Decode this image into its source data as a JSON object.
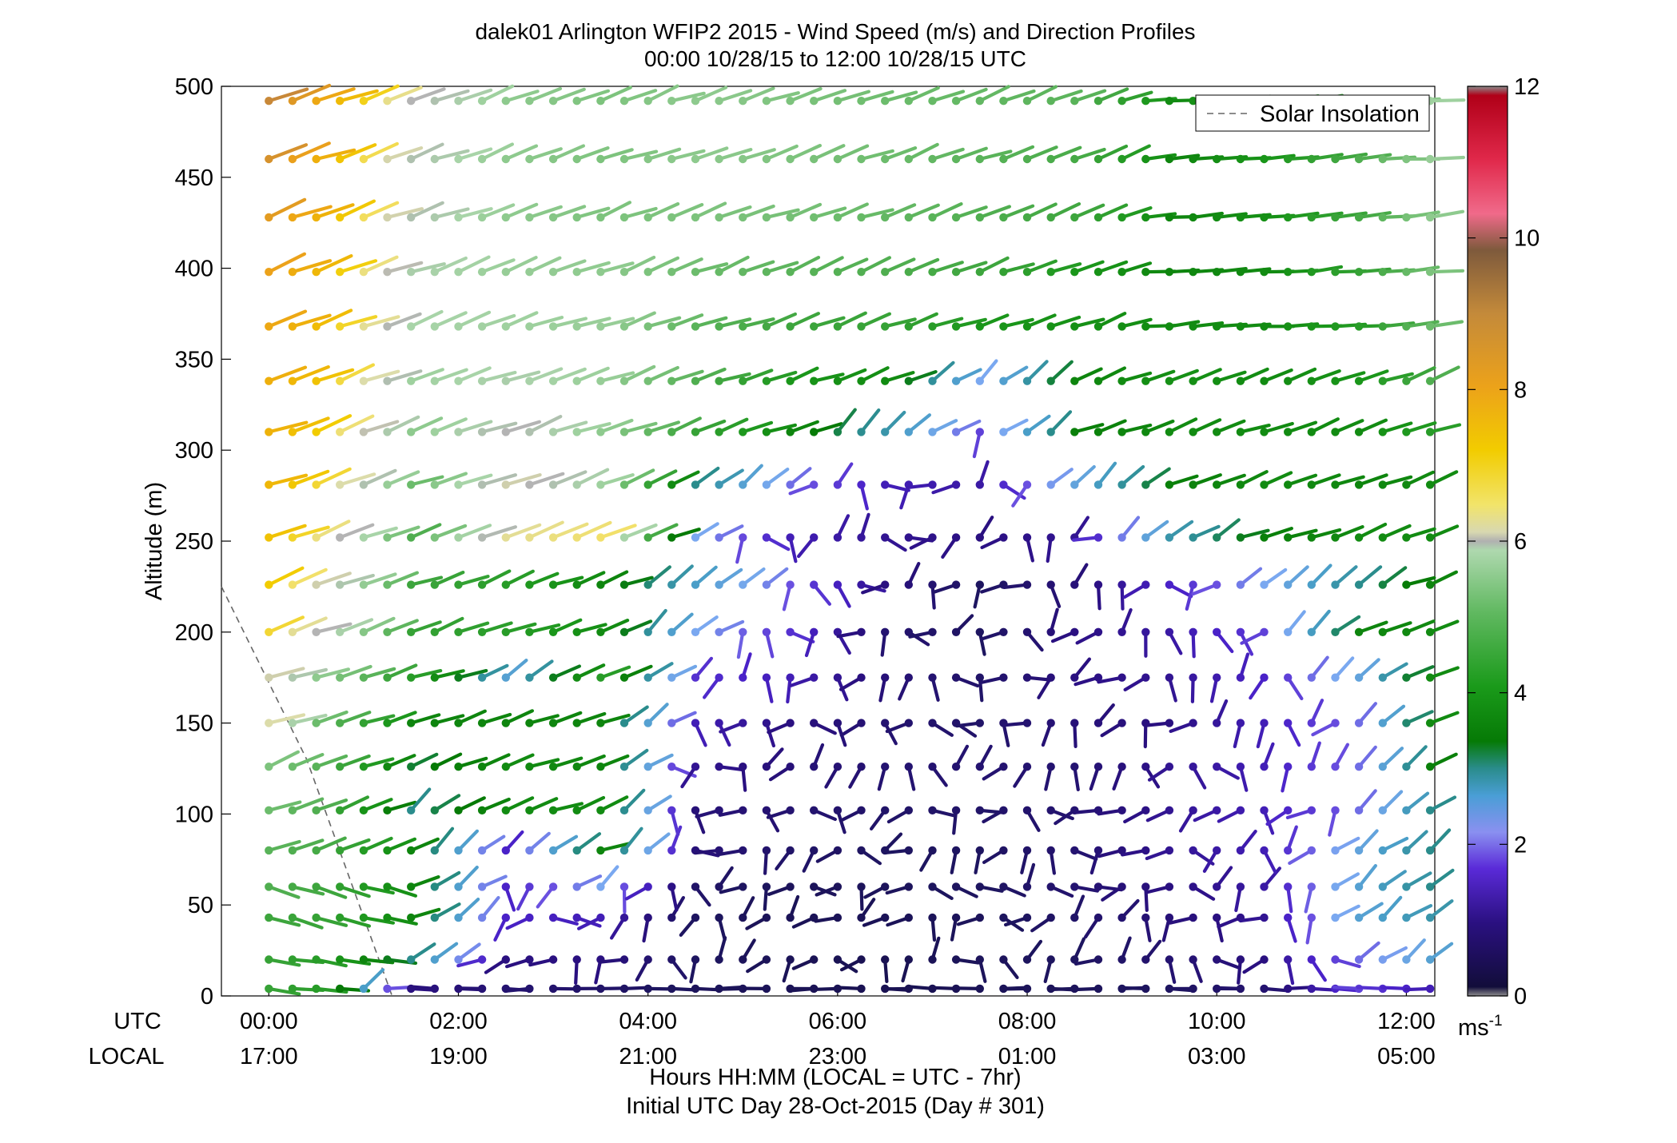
{
  "header": {
    "title_line1": "dalek01 Arlington WFIP2 2015 - Wind Speed (m/s) and Direction Profiles",
    "title_line2": "00:00 10/28/15 to 12:00 10/28/15  UTC"
  },
  "axes": {
    "ylabel": "Altitude (m)",
    "xlabel_line1": "Hours HH:MM  (LOCAL = UTC - 7hr)",
    "xlabel_line2": "Initial UTC Day 28-Oct-2015 (Day # 301)",
    "utc_row_label": "UTC",
    "local_row_label": "LOCAL",
    "utc_ticks": [
      "00:00",
      "02:00",
      "04:00",
      "06:00",
      "08:00",
      "10:00",
      "12:00"
    ],
    "local_ticks": [
      "17:00",
      "19:00",
      "21:00",
      "23:00",
      "01:00",
      "03:00",
      "05:00"
    ],
    "y_ticks": [
      "0",
      "50",
      "100",
      "150",
      "200",
      "250",
      "300",
      "350",
      "400",
      "450",
      "500"
    ]
  },
  "legend": {
    "solar_label": "Solar Insolation"
  },
  "colorbar": {
    "ticks": [
      "0",
      "2",
      "4",
      "6",
      "8",
      "10",
      "12"
    ],
    "unit_base": "ms",
    "unit_exp": "-1"
  },
  "chart_data": {
    "type": "wind barb profile (speed-colored direction sticks)",
    "title": "dalek01 Arlington WFIP2 2015 - Wind Speed (m/s) and Direction Profiles",
    "subtitle": "00:00 10/28/15 to 12:00 10/28/15  UTC",
    "xlabel": "Hours HH:MM  (LOCAL = UTC - 7hr)",
    "ylabel": "Altitude (m)",
    "x_range_hours_utc": [
      -0.5,
      12.3
    ],
    "y_range_m": [
      0,
      500
    ],
    "time_step_minutes": 15,
    "start_hour_utc": 0,
    "altitudes_m": [
      4,
      20,
      43,
      60,
      80,
      102,
      126,
      150,
      175,
      200,
      226,
      252,
      281,
      310,
      338,
      368,
      398,
      428,
      460,
      492
    ],
    "colorbar_range_ms": [
      0,
      12
    ],
    "solar_insolation_line": [
      [
        -0.5,
        225
      ],
      [
        0.4,
        130
      ],
      [
        1.3,
        0
      ]
    ],
    "speed_keyframes": {
      "hours": [
        0,
        0.5,
        1.5,
        2.5,
        3.5,
        4.5,
        5.5,
        6.5,
        7.5,
        8.5,
        9.5,
        10.5,
        11.5,
        12.25
      ],
      "profiles": [
        [
          4.2,
          4.0,
          1.2,
          1.0,
          0.9,
          0.7,
          0.6,
          0.5,
          0.6,
          0.7,
          0.8,
          1.0,
          1.8,
          1.5
        ],
        [
          4.2,
          4.0,
          3.0,
          1.2,
          1.2,
          0.8,
          0.6,
          0.5,
          0.7,
          0.8,
          1.0,
          1.2,
          2.0,
          2.5
        ],
        [
          4.3,
          4.2,
          3.5,
          1.6,
          1.5,
          0.8,
          0.6,
          0.6,
          0.7,
          0.9,
          1.1,
          1.3,
          2.5,
          2.8
        ],
        [
          4.5,
          4.3,
          3.5,
          1.6,
          2.2,
          0.9,
          0.7,
          0.7,
          0.8,
          1.0,
          1.2,
          1.4,
          2.5,
          3.0
        ],
        [
          4.6,
          4.4,
          3.5,
          1.6,
          3.5,
          1.1,
          0.9,
          0.8,
          0.8,
          1.0,
          1.3,
          1.5,
          2.4,
          3.0
        ],
        [
          4.8,
          4.5,
          3.0,
          3.6,
          3.6,
          1.1,
          1.0,
          0.9,
          0.9,
          1.0,
          1.3,
          1.5,
          2.0,
          3.0
        ],
        [
          5.0,
          4.6,
          3.2,
          3.6,
          3.5,
          1.3,
          1.1,
          1.0,
          1.0,
          1.0,
          1.3,
          1.5,
          2.0,
          3.4
        ],
        [
          6.3,
          4.8,
          3.5,
          3.5,
          3.5,
          1.5,
          1.2,
          1.0,
          0.9,
          1.1,
          1.2,
          1.5,
          2.0,
          3.6
        ],
        [
          6.2,
          5.2,
          4.0,
          2.5,
          4.0,
          1.7,
          1.5,
          1.1,
          0.9,
          1.2,
          1.3,
          1.6,
          2.4,
          3.6
        ],
        [
          6.8,
          6.0,
          4.2,
          4.0,
          3.6,
          2.2,
          1.7,
          1.0,
          0.8,
          1.2,
          1.4,
          1.8,
          3.5,
          3.6
        ],
        [
          7.0,
          6.2,
          4.3,
          4.0,
          3.5,
          2.6,
          1.9,
          1.2,
          0.8,
          1.1,
          1.6,
          2.2,
          3.0,
          3.5
        ],
        [
          7.2,
          6.5,
          4.5,
          6.4,
          6.6,
          2.2,
          1.5,
          1.3,
          1.2,
          1.3,
          2.8,
          3.4,
          3.6,
          3.6
        ],
        [
          7.4,
          6.8,
          4.8,
          6.2,
          5.4,
          3.0,
          2.0,
          1.5,
          1.4,
          2.4,
          3.4,
          3.6,
          3.5,
          3.6
        ],
        [
          7.5,
          7.0,
          5.2,
          6.0,
          5.2,
          4.2,
          3.5,
          2.8,
          1.8,
          3.4,
          3.6,
          3.6,
          3.6,
          4.0
        ],
        [
          7.6,
          7.2,
          5.4,
          5.6,
          5.3,
          4.5,
          3.8,
          3.6,
          2.2,
          3.5,
          3.7,
          3.6,
          3.8,
          4.5
        ],
        [
          7.8,
          7.3,
          5.5,
          5.4,
          5.3,
          4.6,
          4.3,
          4.2,
          3.8,
          3.7,
          3.6,
          3.6,
          4.0,
          4.8
        ],
        [
          8.0,
          7.4,
          5.6,
          5.3,
          5.2,
          4.8,
          4.6,
          4.5,
          4.3,
          3.8,
          3.5,
          3.6,
          4.2,
          5.0
        ],
        [
          8.2,
          7.5,
          5.8,
          5.2,
          5.0,
          5.0,
          4.9,
          4.7,
          4.5,
          4.3,
          3.5,
          3.7,
          4.4,
          5.2
        ],
        [
          8.5,
          7.6,
          5.8,
          5.2,
          5.0,
          5.2,
          5.0,
          4.8,
          4.6,
          4.4,
          3.5,
          3.8,
          4.5,
          5.3
        ],
        [
          8.8,
          7.8,
          6.0,
          5.2,
          5.0,
          5.2,
          5.0,
          4.8,
          4.7,
          4.6,
          3.6,
          4.0,
          4.6,
          5.4
        ]
      ]
    },
    "direction_regimes": [
      {
        "layer": "0-60 m",
        "pattern": "westerly / south-westerly near 0-1 UTC, variable southerly after 2 UTC, north-westerly 10-11 UTC"
      },
      {
        "layer": "60-230 m",
        "pattern": "south-westerly to variable southerly 2-11 UTC, westerly later"
      },
      {
        "layer": "230-500 m",
        "pattern": "mostly south-westerly, turning westerly after 9 UTC"
      }
    ]
  }
}
